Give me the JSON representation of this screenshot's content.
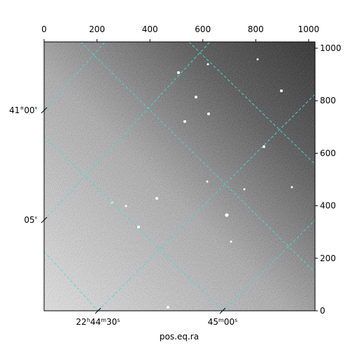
{
  "chart_data": {
    "type": "image",
    "xlabel": "pos.eq.ra",
    "xlim": [
      0,
      1024
    ],
    "xticks": [
      0,
      200,
      400,
      600,
      800,
      1000
    ],
    "ylim": [
      0,
      1024
    ],
    "yticks": [
      0,
      200,
      400,
      600,
      800,
      1000
    ],
    "ra_ticks": [
      "22h44m30s",
      "45m00s"
    ],
    "dec_ticks": [
      "41°00'",
      "05'"
    ],
    "grid_color": "#40e0d0"
  }
}
